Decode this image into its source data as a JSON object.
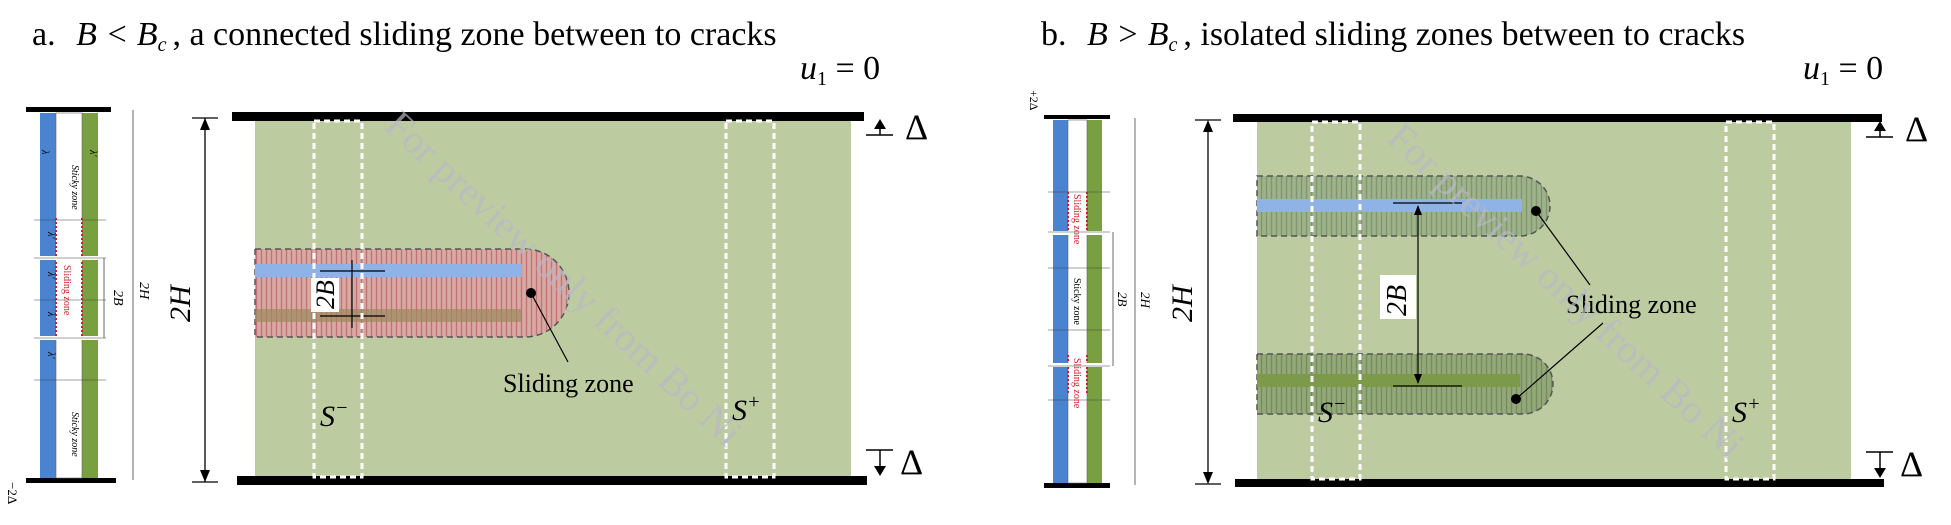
{
  "panel_a": {
    "title_prefix": "a.",
    "title_cond": "B < B",
    "title_sub": "c",
    "title_rest": ", a connected sliding zone between to cracks",
    "u1_label": "u",
    "u1_sub": "1",
    "u1_eq": " = 0",
    "delta_top": "Δ",
    "delta_bottom": "Δ",
    "height_label": "2H",
    "gap_label": "2B",
    "sliding_label": "Sliding zone",
    "s_minus": "S",
    "s_minus_sup": "−",
    "s_plus": "S",
    "s_plus_sup": "+",
    "strip": {
      "top_label": "Sticky zone",
      "mid_label": "Sliding zone",
      "bottom_label": "Sticky zone",
      "gap_label": "2B",
      "height_label": "2H",
      "bottom_delta": "−2Δ",
      "lambda_labels": [
        "λ",
        "λ'",
        "λ'",
        "λ",
        "λ'",
        "λ'"
      ]
    }
  },
  "panel_b": {
    "title_prefix": "b.",
    "title_cond": "B > B",
    "title_sub": "c",
    "title_rest": ", isolated sliding zones between to cracks",
    "u1_label": "u",
    "u1_sub": "1",
    "u1_eq": " = 0",
    "delta_top": "Δ",
    "delta_bottom": "Δ",
    "height_label": "2H",
    "gap_label": "2B",
    "sliding_label": "Sliding zone",
    "s_minus": "S",
    "s_minus_sup": "−",
    "s_plus": "S",
    "s_plus_sup": "+",
    "strip": {
      "top_delta": "+2Δ",
      "gap_label": "2B",
      "height_label": "2H",
      "zone_labels": [
        "Sliding zone",
        "Sticky zone",
        "Sliding zone"
      ]
    }
  },
  "watermark": "For preview only from Bo Ni",
  "colors": {
    "green_bg": "#bccca0",
    "crack_blue": "#8fb3e6",
    "crack_green": "#7c9a4a",
    "slide_red": "#d9a0a0",
    "strip_blue": "#4a84d0",
    "strip_green": "#78a040"
  }
}
